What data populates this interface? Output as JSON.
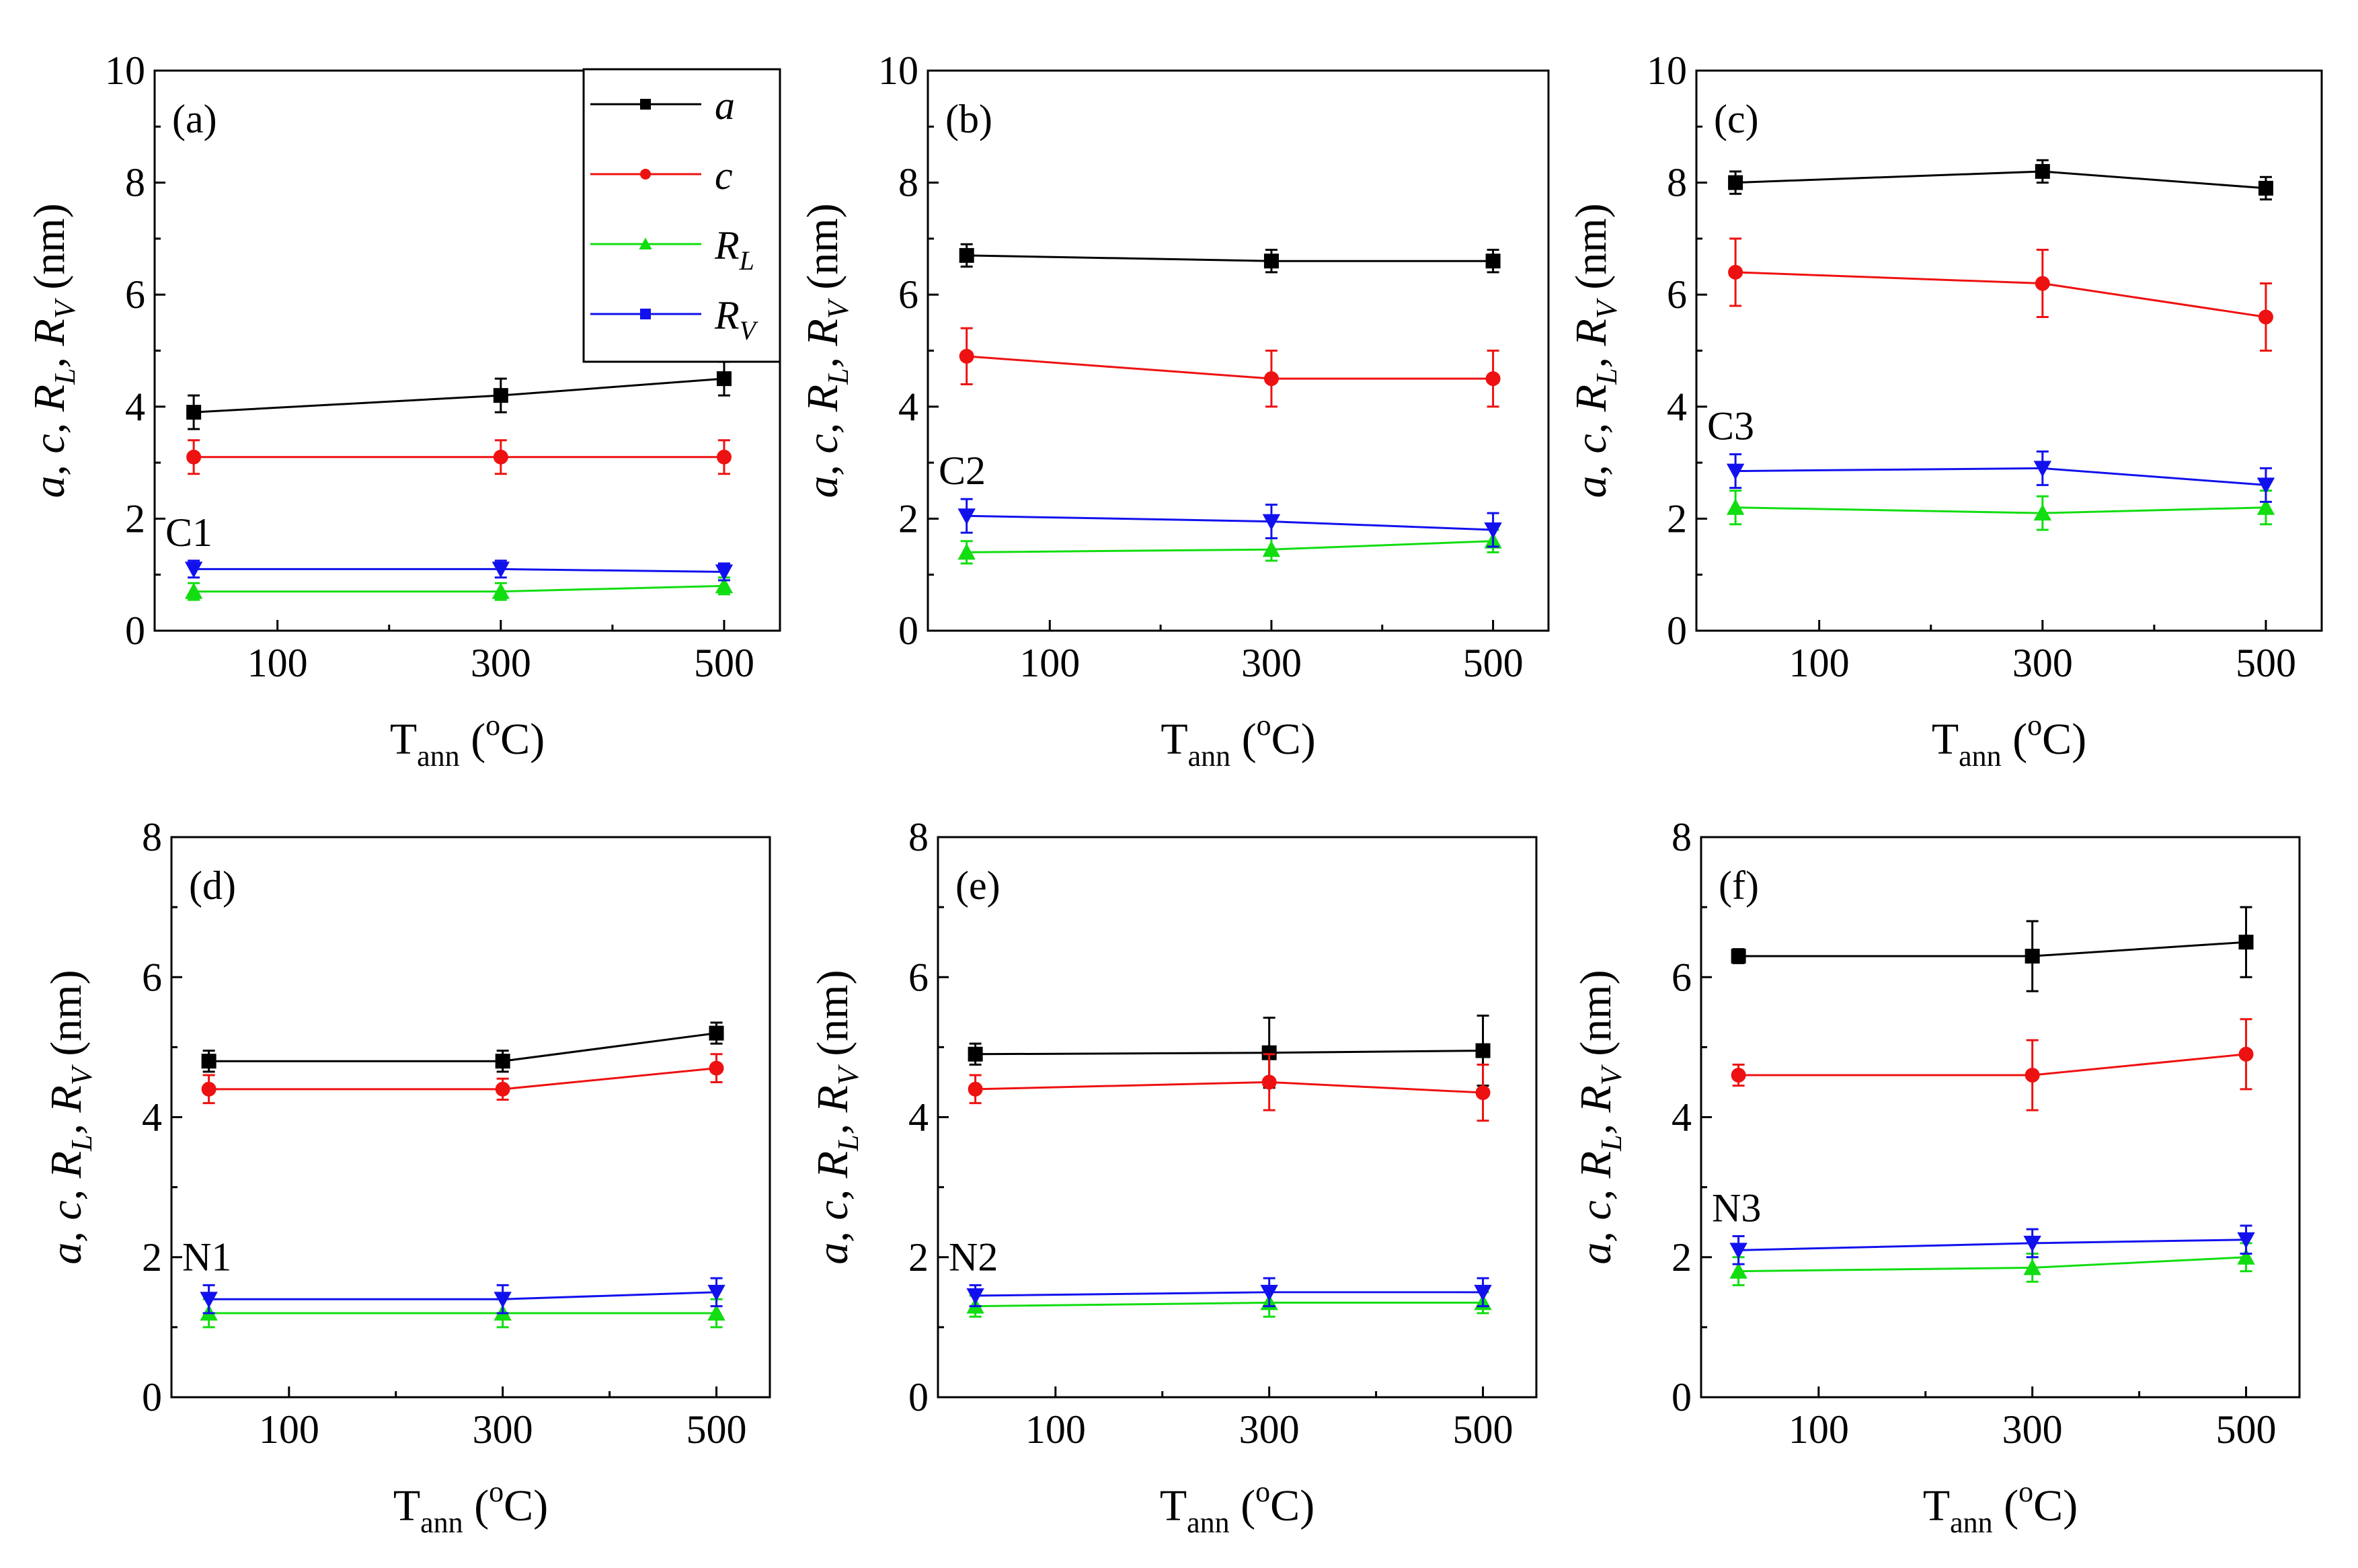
{
  "colors": {
    "a": "#000000",
    "c": "#ee1111",
    "RL": "#11dd11",
    "RV": "#1111ee"
  },
  "legend": {
    "items": [
      {
        "key": "a",
        "label": "a",
        "sub": "",
        "marker": "square",
        "color": "#000000"
      },
      {
        "key": "c",
        "label": "c",
        "sub": "",
        "marker": "circle",
        "color": "#ee1111"
      },
      {
        "key": "RL",
        "label": "R",
        "sub": "L",
        "marker": "triangle-up",
        "color": "#11dd11"
      },
      {
        "key": "RV",
        "label": "R",
        "sub": "V",
        "marker": "square",
        "color": "#1111ee"
      }
    ]
  },
  "chart_data": [
    {
      "type": "line",
      "panel": "(a)",
      "sample": "C1",
      "x": [
        25,
        300,
        500
      ],
      "xticks": [
        100,
        300,
        500
      ],
      "xlim": [
        -10,
        550
      ],
      "ylim": [
        0,
        10
      ],
      "yticks": [
        0,
        2,
        4,
        6,
        8,
        10
      ],
      "xlabel": "T",
      "xlabel_sub": "ann",
      "xlabel_unit": "(oC)",
      "ylabel": "a, c, R_L, R_V (nm)",
      "series": [
        {
          "name": "a",
          "values": [
            3.9,
            4.2,
            4.5
          ],
          "errors": [
            0.3,
            0.3,
            0.3
          ]
        },
        {
          "name": "c",
          "values": [
            3.1,
            3.1,
            3.1
          ],
          "errors": [
            0.3,
            0.3,
            0.3
          ]
        },
        {
          "name": "RL",
          "values": [
            0.7,
            0.7,
            0.8
          ],
          "errors": [
            0.15,
            0.15,
            0.15
          ]
        },
        {
          "name": "RV",
          "values": [
            1.1,
            1.1,
            1.05
          ],
          "errors": [
            0.15,
            0.15,
            0.15
          ]
        }
      ]
    },
    {
      "type": "line",
      "panel": "(b)",
      "sample": "C2",
      "x": [
        25,
        300,
        500
      ],
      "xticks": [
        100,
        300,
        500
      ],
      "xlim": [
        -10,
        550
      ],
      "ylim": [
        0,
        10
      ],
      "yticks": [
        0,
        2,
        4,
        6,
        8,
        10
      ],
      "xlabel": "T",
      "xlabel_sub": "ann",
      "xlabel_unit": "(oC)",
      "ylabel": "a, c, R_L, R_V (nm)",
      "series": [
        {
          "name": "a",
          "values": [
            6.7,
            6.6,
            6.6
          ],
          "errors": [
            0.2,
            0.2,
            0.2
          ]
        },
        {
          "name": "c",
          "values": [
            4.9,
            4.5,
            4.5
          ],
          "errors": [
            0.5,
            0.5,
            0.5
          ]
        },
        {
          "name": "RL",
          "values": [
            1.4,
            1.45,
            1.6
          ],
          "errors": [
            0.2,
            0.2,
            0.2
          ]
        },
        {
          "name": "RV",
          "values": [
            2.05,
            1.95,
            1.8
          ],
          "errors": [
            0.3,
            0.3,
            0.3
          ]
        }
      ]
    },
    {
      "type": "line",
      "panel": "(c)",
      "sample": "C3",
      "x": [
        25,
        300,
        500
      ],
      "xticks": [
        100,
        300,
        500
      ],
      "xlim": [
        -10,
        550
      ],
      "ylim": [
        0,
        10
      ],
      "yticks": [
        0,
        2,
        4,
        6,
        8,
        10
      ],
      "xlabel": "T",
      "xlabel_sub": "ann",
      "xlabel_unit": "(oC)",
      "ylabel": "a, c, R_L, R_V (nm)",
      "series": [
        {
          "name": "a",
          "values": [
            8.0,
            8.2,
            7.9
          ],
          "errors": [
            0.2,
            0.2,
            0.2
          ]
        },
        {
          "name": "c",
          "values": [
            6.4,
            6.2,
            5.6
          ],
          "errors": [
            0.6,
            0.6,
            0.6
          ]
        },
        {
          "name": "RL",
          "values": [
            2.2,
            2.1,
            2.2
          ],
          "errors": [
            0.3,
            0.3,
            0.3
          ]
        },
        {
          "name": "RV",
          "values": [
            2.85,
            2.9,
            2.6
          ],
          "errors": [
            0.3,
            0.3,
            0.3
          ]
        }
      ]
    },
    {
      "type": "line",
      "panel": "(d)",
      "sample": "N1",
      "x": [
        25,
        300,
        500
      ],
      "xticks": [
        100,
        300,
        500
      ],
      "xlim": [
        -10,
        550
      ],
      "ylim": [
        0,
        8
      ],
      "yticks": [
        0,
        2,
        4,
        6,
        8
      ],
      "xlabel": "T",
      "xlabel_sub": "ann",
      "xlabel_unit": "(oC)",
      "ylabel": "a, c, R_L, R_V (nm)",
      "series": [
        {
          "name": "a",
          "values": [
            4.8,
            4.8,
            5.2
          ],
          "errors": [
            0.15,
            0.15,
            0.15
          ]
        },
        {
          "name": "c",
          "values": [
            4.4,
            4.4,
            4.7
          ],
          "errors": [
            0.2,
            0.15,
            0.2
          ]
        },
        {
          "name": "RL",
          "values": [
            1.2,
            1.2,
            1.2
          ],
          "errors": [
            0.2,
            0.2,
            0.2
          ]
        },
        {
          "name": "RV",
          "values": [
            1.4,
            1.4,
            1.5
          ],
          "errors": [
            0.2,
            0.2,
            0.2
          ]
        }
      ]
    },
    {
      "type": "line",
      "panel": "(e)",
      "sample": "N2",
      "x": [
        25,
        300,
        500
      ],
      "xticks": [
        100,
        300,
        500
      ],
      "xlim": [
        -10,
        550
      ],
      "ylim": [
        0,
        8
      ],
      "yticks": [
        0,
        2,
        4,
        6,
        8
      ],
      "xlabel": "T",
      "xlabel_sub": "ann",
      "xlabel_unit": "(oC)",
      "ylabel": "a, c, R_L, R_V (nm)",
      "series": [
        {
          "name": "a",
          "values": [
            4.9,
            4.92,
            4.95
          ],
          "errors": [
            0.15,
            0.5,
            0.5
          ]
        },
        {
          "name": "c",
          "values": [
            4.4,
            4.5,
            4.35
          ],
          "errors": [
            0.2,
            0.4,
            0.4
          ]
        },
        {
          "name": "RL",
          "values": [
            1.3,
            1.35,
            1.35
          ],
          "errors": [
            0.15,
            0.2,
            0.15
          ]
        },
        {
          "name": "RV",
          "values": [
            1.45,
            1.5,
            1.5
          ],
          "errors": [
            0.15,
            0.2,
            0.2
          ]
        }
      ]
    },
    {
      "type": "line",
      "panel": "(f)",
      "sample": "N3",
      "x": [
        25,
        300,
        500
      ],
      "xticks": [
        100,
        300,
        500
      ],
      "xlim": [
        -10,
        550
      ],
      "ylim": [
        0,
        8
      ],
      "yticks": [
        0,
        2,
        4,
        6,
        8
      ],
      "xlabel": "T",
      "xlabel_sub": "ann",
      "xlabel_unit": "(oC)",
      "ylabel": "a, c, R_L, R_V (nm)",
      "series": [
        {
          "name": "a",
          "values": [
            6.3,
            6.3,
            6.5
          ],
          "errors": [
            0.1,
            0.5,
            0.5
          ]
        },
        {
          "name": "c",
          "values": [
            4.6,
            4.6,
            4.9
          ],
          "errors": [
            0.15,
            0.5,
            0.5
          ]
        },
        {
          "name": "RL",
          "values": [
            1.8,
            1.85,
            2.0
          ],
          "errors": [
            0.2,
            0.2,
            0.2
          ]
        },
        {
          "name": "RV",
          "values": [
            2.1,
            2.2,
            2.25
          ],
          "errors": [
            0.2,
            0.2,
            0.2
          ]
        }
      ]
    }
  ]
}
